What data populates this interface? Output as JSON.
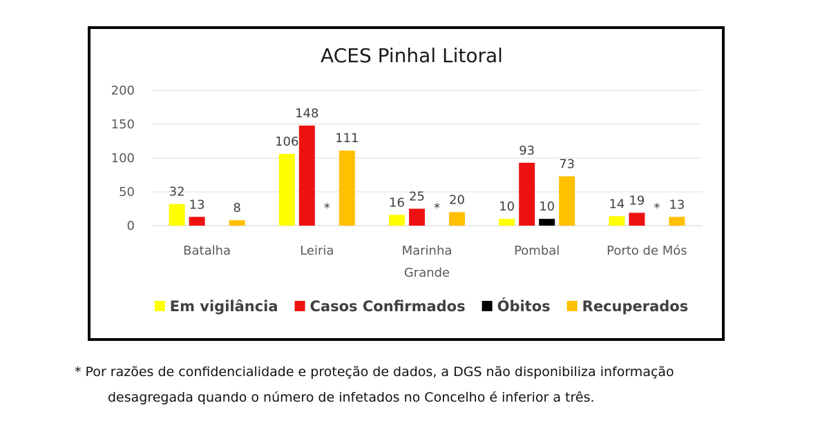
{
  "chart_data": {
    "type": "bar",
    "title": "ACES Pinhal Litoral",
    "categories": [
      [
        "Batalha"
      ],
      [
        "Leiria"
      ],
      [
        "Marinha",
        "Grande"
      ],
      [
        "Pombal"
      ],
      [
        "Porto de Mós"
      ]
    ],
    "series": [
      {
        "name": "Em vigilância",
        "color": "#FFFF00",
        "values": [
          32,
          106,
          16,
          10,
          14
        ],
        "labels": [
          "32",
          "106",
          "16",
          "10",
          "14"
        ]
      },
      {
        "name": "Casos Confirmados",
        "color": "#EE1111",
        "values": [
          13,
          148,
          25,
          93,
          19
        ],
        "labels": [
          "13",
          "148",
          "25",
          "93",
          "19"
        ]
      },
      {
        "name": "Óbitos",
        "color": "#000000",
        "values": [
          null,
          null,
          null,
          10,
          null
        ],
        "labels": [
          "",
          "*",
          "*",
          "10",
          "*"
        ]
      },
      {
        "name": "Recuperados",
        "color": "#FFC000",
        "values": [
          8,
          111,
          20,
          73,
          13
        ],
        "labels": [
          "8",
          "111",
          "20",
          "73",
          "13"
        ]
      }
    ],
    "yticks": [
      0,
      50,
      100,
      150,
      200
    ],
    "ylim": [
      0,
      200
    ],
    "grid": true,
    "legend_position": "bottom"
  },
  "footnote": {
    "line1": "* Por razões de confidencialidade e proteção de dados, a DGS não disponibiliza informação",
    "line2": "desagregada quando o número de infetados no Concelho é inferior a três."
  }
}
